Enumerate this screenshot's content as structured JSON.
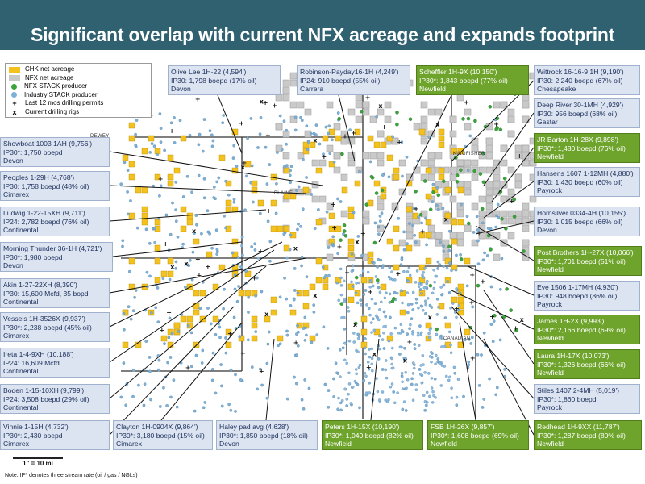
{
  "header": {
    "title": "Significant overlap with current NFX acreage and expands footprint"
  },
  "legend": [
    {
      "label": "CHK net acreage",
      "kind": "swatch",
      "color": "#f4c21f"
    },
    {
      "label": "NFX net acreage",
      "kind": "swatch",
      "color": "#c9c9c9"
    },
    {
      "label": "NFX STACK producer",
      "kind": "dot",
      "color": "#3aa33a"
    },
    {
      "label": "Industry STACK producer",
      "kind": "dot",
      "color": "#7fb0d6"
    },
    {
      "label": "Last 12 mos drilling permits",
      "kind": "symbol",
      "symbol": "+"
    },
    {
      "label": "Current drilling rigs",
      "kind": "symbol",
      "symbol": "x"
    }
  ],
  "towns": [
    "DEWEY",
    "BLAINE",
    "KINGFISHER",
    "CANADIAN"
  ],
  "scale": {
    "label": "1\" = 10 mi"
  },
  "note": "Note: IP* denotes three stream rate (oil / gas / NGLs)",
  "callouts": [
    {
      "id": "olive-lee",
      "style": "blue",
      "lines": [
        "Olive Lee 1H-22 (4,594')",
        "IP30: 1,798 boepd (17% oil)",
        "Devon"
      ]
    },
    {
      "id": "robinson-payday",
      "style": "blue",
      "lines": [
        "Robinson-Payday16-1H (4,249')",
        "IP24: 910 boepd (55% oil)",
        "Carrera"
      ]
    },
    {
      "id": "scheffler",
      "style": "green",
      "lines": [
        "Scheffler 1H-9X (10,150')",
        "IP30*: 1,843 boepd (77% oil)",
        "Newfield"
      ]
    },
    {
      "id": "wittrock",
      "style": "blue",
      "lines": [
        "Wittrock 16-16-9 1H (9,190')",
        "IP30: 2,240 boepd (67% oil)",
        "Chesapeake"
      ]
    },
    {
      "id": "deep-river",
      "style": "blue",
      "lines": [
        "Deep River 30-1MH (4,929')",
        "IP30: 956 boepd (68% oil)",
        "Gastar"
      ]
    },
    {
      "id": "jr-barton",
      "style": "green",
      "lines": [
        "JR Barton 1H-28X (9,898')",
        "IP30*: 1,480 boepd (76% oil)",
        "Newfield"
      ]
    },
    {
      "id": "hansens",
      "style": "blue",
      "lines": [
        "Hansens 1607 1-12MH (4,880')",
        "IP30: 1,430 boepd (60% oil)",
        "Payrock"
      ]
    },
    {
      "id": "hornsilver",
      "style": "blue",
      "lines": [
        "Hornsilver 0334-4H (10,155')",
        "IP30: 1,015 boepd (66% oil)",
        "Devon"
      ]
    },
    {
      "id": "post-brothers",
      "style": "green",
      "lines": [
        "Post Brothers 1H-27X (10,066')",
        "IP30*: 1,701 boepd (51% oil)",
        "Newfield"
      ]
    },
    {
      "id": "eve",
      "style": "blue",
      "lines": [
        "Eve 1506 1-17MH (4,930')",
        "IP30: 948 boepd (86% oil)",
        "Payrock"
      ]
    },
    {
      "id": "james",
      "style": "green",
      "lines": [
        "James 1H-2X (9,993')",
        "IP30*: 2,166 boepd (69% oil)",
        "Newfield"
      ]
    },
    {
      "id": "laura",
      "style": "green",
      "lines": [
        "Laura 1H-17X (10,073')",
        "IP30*: 1,326 boepd (66% oil)",
        "Newfield"
      ]
    },
    {
      "id": "stiles",
      "style": "blue",
      "lines": [
        "Stiles 1407 2-4MH (5,019')",
        "IP30*: 1,860 boepd",
        "Payrock"
      ]
    },
    {
      "id": "redhead",
      "style": "green",
      "lines": [
        "Redhead 1H-9XX (11,787')",
        "IP30*: 1,287 boepd (80% oil)",
        "Newfield"
      ]
    },
    {
      "id": "fsb",
      "style": "green",
      "lines": [
        "FSB 1H-26X (9,857')",
        "IP30*: 1,608 boepd (69% oil)",
        "Newfield"
      ]
    },
    {
      "id": "peters",
      "style": "green",
      "lines": [
        "Peters 1H-15X (10,190')",
        "IP30*: 1,040 boepd (82% oil)",
        "Newfield"
      ]
    },
    {
      "id": "haley-pad",
      "style": "blue",
      "lines": [
        "Haley pad avg (4,628')",
        "IP30*: 1,850 boepd (18% oil)",
        "Devon"
      ]
    },
    {
      "id": "clayton",
      "style": "blue",
      "lines": [
        "Clayton 1H-0904X (9,864')",
        "IP30*: 3,180 boepd (15% oil)",
        "Cimarex"
      ]
    },
    {
      "id": "vinnie",
      "style": "blue",
      "lines": [
        "Vinnie 1-15H (4,732')",
        "IP30*: 2,430 boepd",
        "Cimarex"
      ]
    },
    {
      "id": "boden",
      "style": "blue",
      "lines": [
        "Boden 1-15-10XH (9,799')",
        "IP24: 3,508 boepd (29% oil)",
        "Continental"
      ]
    },
    {
      "id": "ireta",
      "style": "blue",
      "lines": [
        "Ireta 1-4-9XH (10,188')",
        "IP24: 16,609 Mcfd",
        "Continental"
      ]
    },
    {
      "id": "vessels",
      "style": "blue",
      "lines": [
        "Vessels 1H-3526X (9,937')",
        "IP30*: 2,238 boepd (45% oil)",
        "Cimarex"
      ]
    },
    {
      "id": "akin",
      "style": "blue",
      "lines": [
        "Akin 1-27-22XH (8,390')",
        "IP30: 15,600 Mcfd, 35 bopd",
        "Continental"
      ]
    },
    {
      "id": "morning-thunder",
      "style": "blue",
      "lines": [
        "Morning Thunder 36-1H (4,721')",
        "IP30*: 1,980 boepd",
        "Devon"
      ]
    },
    {
      "id": "ludwig",
      "style": "blue",
      "lines": [
        "Ludwig 1-22-15XH (9,711')",
        "IP24: 2,782 boepd (76% oil)",
        "Continental"
      ]
    },
    {
      "id": "peoples",
      "style": "blue",
      "lines": [
        "Peoples 1-29H (4,768')",
        "IP30: 1,758 boepd (48% oil)",
        "Cimarex"
      ]
    },
    {
      "id": "showboat",
      "style": "blue",
      "lines": [
        "Showboat 1003 1AH (9,756')",
        "IP30*: 1,750 boepd",
        "Devon"
      ]
    }
  ]
}
